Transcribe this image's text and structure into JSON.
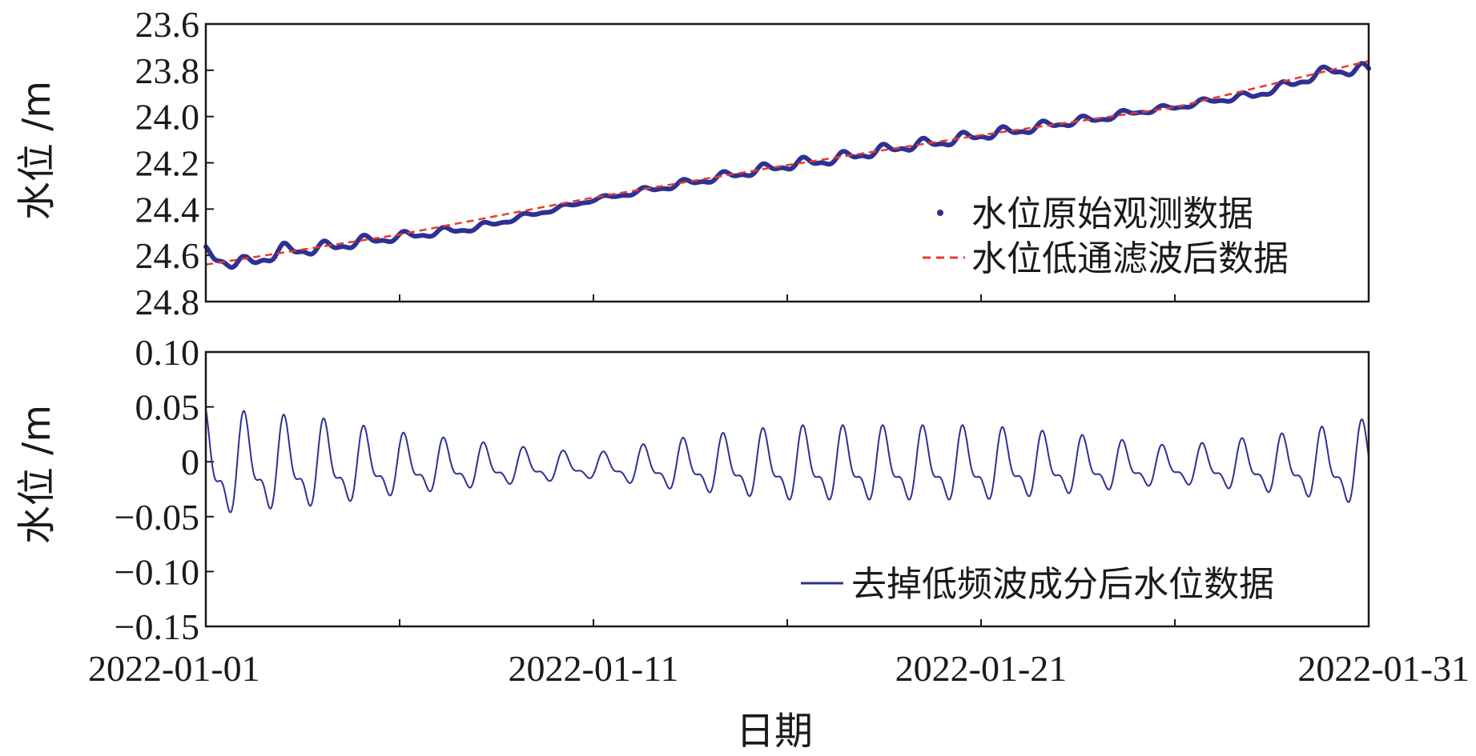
{
  "chart_data": [
    {
      "id": "top",
      "type": "line",
      "ylabel": "水位 /m",
      "y_axis_inverted": true,
      "ylim": [
        23.6,
        24.8
      ],
      "yticks": [
        "23.6",
        "23.8",
        "24.0",
        "24.2",
        "24.4",
        "24.6",
        "24.8"
      ],
      "ytick_values": [
        23.6,
        23.8,
        24.0,
        24.2,
        24.4,
        24.6,
        24.8
      ],
      "xlim": [
        "2022-01-01",
        "2022-01-31"
      ],
      "legend_position": "bottom-right",
      "series": [
        {
          "name": "水位原始观测数据",
          "style": "dots",
          "color": "#2e3192",
          "x": [
            "2022-01-01",
            "2022-01-02",
            "2022-01-03",
            "2022-01-04",
            "2022-01-05",
            "2022-01-06",
            "2022-01-07",
            "2022-01-08",
            "2022-01-09",
            "2022-01-10",
            "2022-01-11",
            "2022-01-12",
            "2022-01-13",
            "2022-01-14",
            "2022-01-15",
            "2022-01-16",
            "2022-01-17",
            "2022-01-18",
            "2022-01-19",
            "2022-01-20",
            "2022-01-21",
            "2022-01-22",
            "2022-01-23",
            "2022-01-24",
            "2022-01-25",
            "2022-01-26",
            "2022-01-27",
            "2022-01-28",
            "2022-01-29",
            "2022-01-30",
            "2022-01-31"
          ],
          "y": [
            24.6,
            24.64,
            24.58,
            24.57,
            24.54,
            24.52,
            24.5,
            24.48,
            24.44,
            24.4,
            24.36,
            24.33,
            24.3,
            24.27,
            24.24,
            24.21,
            24.19,
            24.16,
            24.13,
            24.11,
            24.08,
            24.06,
            24.03,
            24.01,
            23.98,
            23.96,
            23.93,
            23.91,
            23.86,
            23.8,
            23.8
          ]
        },
        {
          "name": "水位低通滤波后数据",
          "style": "dashed",
          "color": "#e8392b",
          "x": [
            "2022-01-01",
            "2022-01-06",
            "2022-01-11",
            "2022-01-16",
            "2022-01-21",
            "2022-01-26",
            "2022-01-31"
          ],
          "y": [
            24.64,
            24.51,
            24.35,
            24.21,
            24.08,
            23.96,
            23.76
          ]
        }
      ]
    },
    {
      "id": "bottom",
      "type": "line",
      "ylabel": "水位 /m",
      "ylim": [
        -0.15,
        0.1
      ],
      "yticks": [
        "0.10",
        "0.05",
        "0",
        "−0.05",
        "−0.10",
        "−0.15"
      ],
      "ytick_values": [
        0.1,
        0.05,
        0,
        -0.05,
        -0.1,
        -0.15
      ],
      "xlim": [
        "2022-01-01",
        "2022-01-31"
      ],
      "xticks": [
        "2022-01-01",
        "2022-01-11",
        "2022-01-21",
        "2022-01-31"
      ],
      "xlabel": "日期",
      "legend_position": "bottom-right",
      "series": [
        {
          "name": "去掉低频波成分后水位数据",
          "style": "line",
          "color": "#2e3192",
          "wave": {
            "period_days": 1.03,
            "amplitude_days": [
              0,
              1,
              3,
              5,
              8,
              10,
              12,
              15,
              18,
              20,
              22,
              25,
              28,
              30
            ],
            "amplitude_values": [
              0.09,
              0.08,
              0.07,
              0.05,
              0.03,
              0.02,
              0.04,
              0.06,
              0.06,
              0.06,
              0.05,
              0.03,
              0.05,
              0.07
            ],
            "mean_offset": -0.005
          }
        }
      ]
    }
  ]
}
